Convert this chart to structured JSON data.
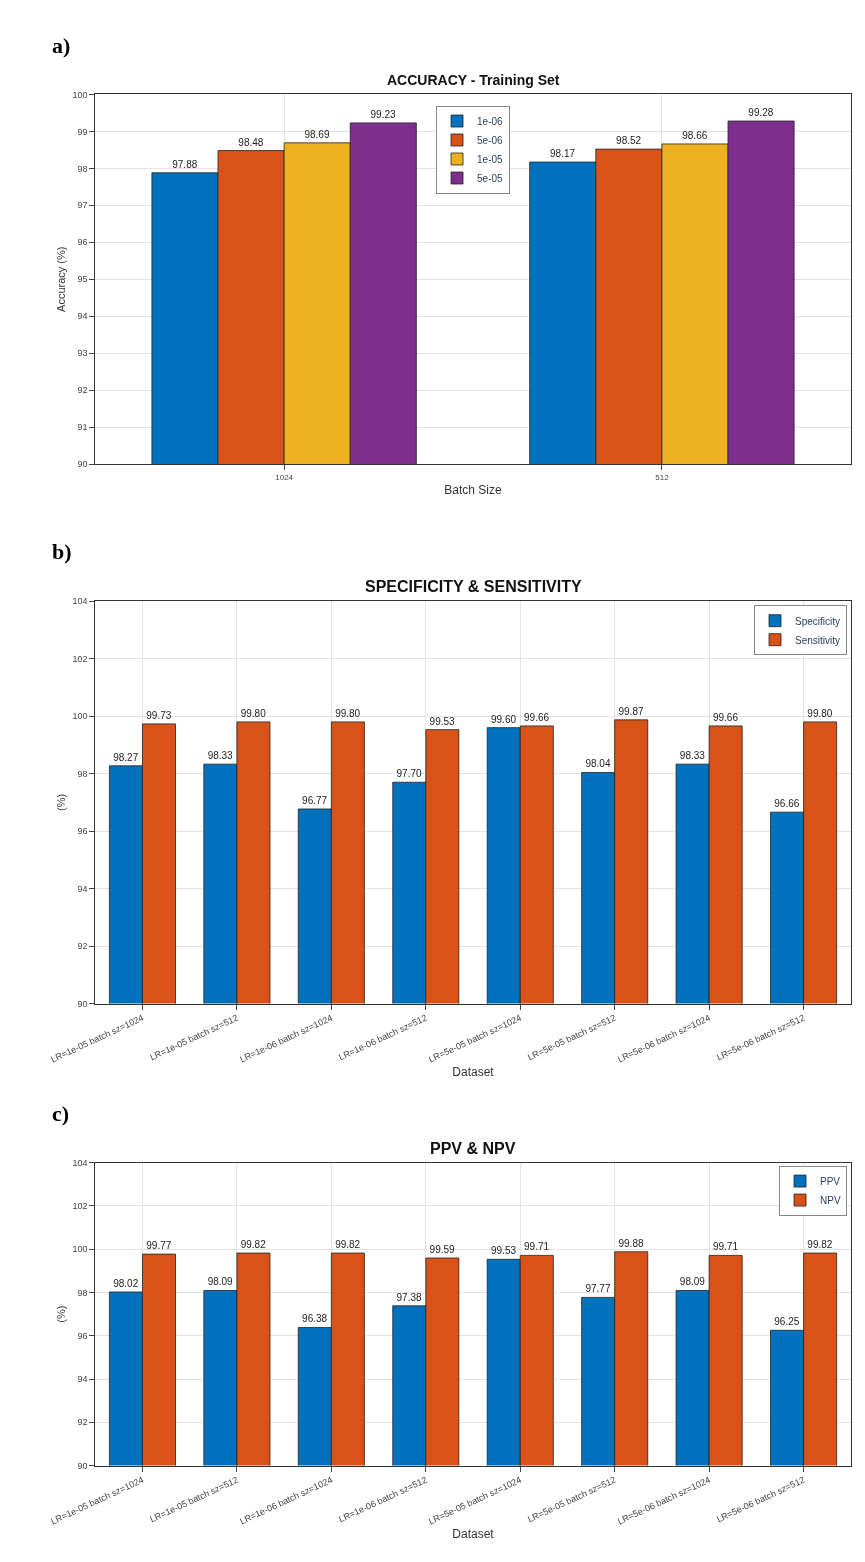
{
  "chart_data": [
    {
      "type": "bar",
      "title": "ACCURACY - Training Set",
      "xlabel": "Batch Size",
      "ylabel": "Accuracy (%)",
      "annotations": [
        "a)"
      ],
      "categories": [
        "1024",
        "512"
      ],
      "series": [
        {
          "name": "1e-06",
          "color": "#0072bd",
          "values": [
            97.88,
            98.17
          ]
        },
        {
          "name": "5e-06",
          "color": "#d95319",
          "values": [
            98.48,
            98.52
          ]
        },
        {
          "name": "1e-05",
          "color": "#edb120",
          "values": [
            98.69,
            98.66
          ]
        },
        {
          "name": "5e-05",
          "color": "#7e2f8e",
          "values": [
            99.23,
            99.28
          ]
        }
      ],
      "ylim": [
        90,
        100
      ],
      "yticks": [
        90,
        91,
        92,
        93,
        94,
        95,
        96,
        97,
        98,
        99,
        100
      ],
      "grid": true,
      "legend": "top",
      "data_labels": true
    },
    {
      "type": "bar",
      "title": "SPECIFICITY & SENSITIVITY",
      "xlabel": "Dataset",
      "ylabel": "(%)",
      "annotations": [
        "b)"
      ],
      "categories": [
        "LR=1e-05 batch sz=1024",
        "LR=1e-05 batch sz=512",
        "LR=1e-06 batch sz=1024",
        "LR=1e-06 batch sz=512",
        "LR=5e-05 batch sz=1024",
        "LR=5e-05 batch sz=512",
        "LR=5e-06 batch sz=1024",
        "LR=5e-06 batch sz=512"
      ],
      "series": [
        {
          "name": "Specificity",
          "color": "#0072bd",
          "values": [
            98.27,
            98.33,
            96.77,
            97.7,
            99.6,
            98.04,
            98.33,
            96.66
          ],
          "value_labels": [
            "98.27",
            "98.33",
            "96.77",
            "97.70",
            "99.60",
            "98.04",
            "98.33",
            "96.66"
          ]
        },
        {
          "name": "Sensitivity",
          "color": "#d95319",
          "values": [
            99.73,
            99.8,
            99.8,
            99.53,
            99.66,
            99.87,
            99.66,
            99.8
          ],
          "value_labels": [
            "99.73",
            "99.80",
            "99.80",
            "99.53",
            "99.66",
            "99.87",
            "99.66",
            "99.80"
          ]
        }
      ],
      "ylim": [
        90,
        104
      ],
      "yticks": [
        90,
        92,
        94,
        96,
        98,
        100,
        102,
        104
      ],
      "grid": true,
      "legend": "top right"
    },
    {
      "type": "bar",
      "title": "PPV & NPV",
      "xlabel": "Dataset",
      "ylabel": "(%)",
      "annotations": [
        "c)"
      ],
      "categories": [
        "LR=1e-05 batch sz=1024",
        "LR=1e-05 batch sz=512",
        "LR=1e-06 batch sz=1024",
        "LR=1e-06 batch sz=512",
        "LR=5e-05 batch sz=1024",
        "LR=5e-05 batch sz=512",
        "LR=5e-06 batch sz=1024",
        "LR=5e-06 batch sz=512"
      ],
      "series": [
        {
          "name": "PPV",
          "color": "#0072bd",
          "values": [
            98.02,
            98.09,
            96.38,
            97.38,
            99.53,
            97.77,
            98.09,
            96.25
          ]
        },
        {
          "name": "NPV",
          "color": "#d95319",
          "values": [
            99.77,
            99.82,
            99.82,
            99.59,
            99.71,
            99.88,
            99.71,
            99.82
          ]
        }
      ],
      "ylim": [
        90,
        104
      ],
      "yticks": [
        90,
        92,
        94,
        96,
        98,
        100,
        102,
        104
      ],
      "grid": true,
      "legend": "top right",
      "data_labels": true
    }
  ]
}
